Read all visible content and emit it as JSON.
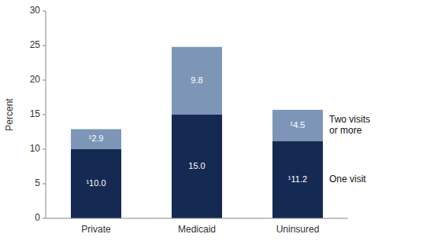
{
  "chart_data": {
    "type": "bar",
    "stacked": true,
    "categories": [
      "Private",
      "Medicaid",
      "Uninsured"
    ],
    "series": [
      {
        "name": "One visit",
        "color": "#152a52",
        "values": [
          10.0,
          15.0,
          11.2
        ],
        "value_labels": [
          "¹10.0",
          "15.0",
          "¹11.2"
        ]
      },
      {
        "name": "Two visits\nor more",
        "color": "#7d96b8",
        "values": [
          2.9,
          9.8,
          4.5
        ],
        "value_labels": [
          "¹2.9",
          "9.8",
          "¹4.5"
        ]
      }
    ],
    "y_label": "Percent",
    "ylim": [
      0,
      30
    ],
    "yticks": [
      0,
      5,
      10,
      15,
      20,
      25,
      30
    ],
    "data_labels": true,
    "legend": "right",
    "grid": false
  }
}
